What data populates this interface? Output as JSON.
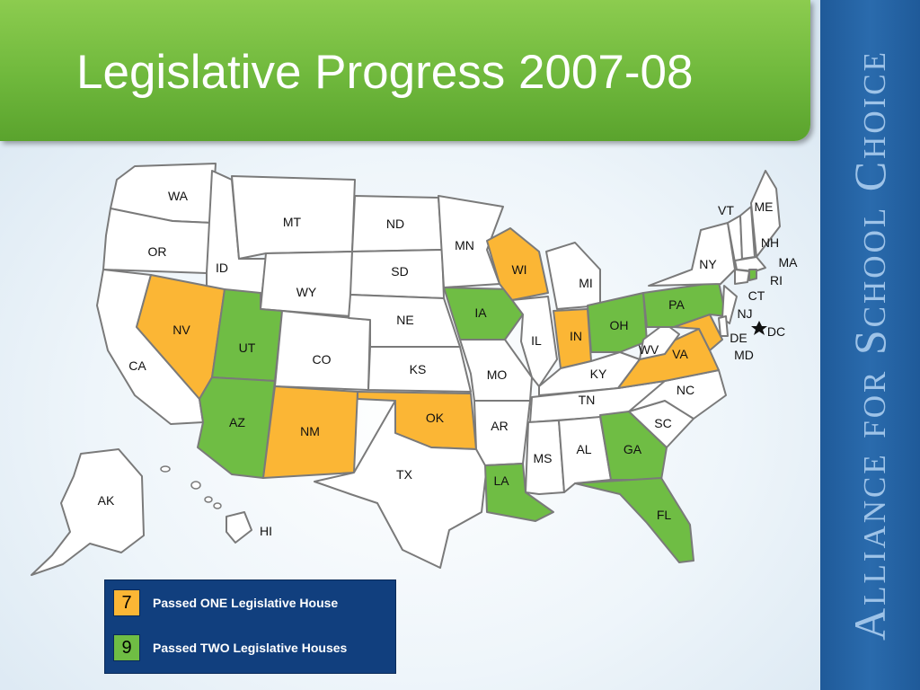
{
  "header": {
    "title": "Legislative Progress 2007-08"
  },
  "sidebar": {
    "brand": "Alliance for School Choice"
  },
  "colors": {
    "one_house": "#fbb635",
    "two_houses": "#6fbd44",
    "none": "#ffffff",
    "border": "#7a7a7a"
  },
  "legend": {
    "items": [
      {
        "count": "7",
        "label": "Passed ONE Legislative House",
        "color": "#fbb635"
      },
      {
        "count": "9",
        "label": "Passed TWO Legislative Houses",
        "color": "#6fbd44"
      }
    ]
  },
  "map": {
    "states_one_house": [
      "NV",
      "NM",
      "OK",
      "WI",
      "IN",
      "VA",
      "MD"
    ],
    "states_two_houses": [
      "UT",
      "AZ",
      "IA",
      "LA",
      "GA",
      "FL",
      "OH",
      "PA",
      "RI"
    ],
    "labels": [
      "WA",
      "OR",
      "CA",
      "ID",
      "NV",
      "MT",
      "WY",
      "UT",
      "AZ",
      "CO",
      "NM",
      "ND",
      "SD",
      "NE",
      "KS",
      "OK",
      "TX",
      "MN",
      "IA",
      "MO",
      "AR",
      "LA",
      "WI",
      "IL",
      "MI",
      "IN",
      "OH",
      "KY",
      "TN",
      "MS",
      "AL",
      "GA",
      "FL",
      "SC",
      "NC",
      "VA",
      "WV",
      "PA",
      "NY",
      "VT",
      "ME",
      "NH",
      "MA",
      "RI",
      "CT",
      "NJ",
      "DE",
      "MD",
      "DC",
      "AK",
      "HI"
    ]
  }
}
